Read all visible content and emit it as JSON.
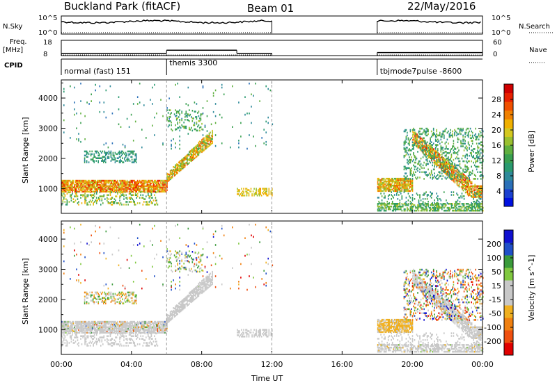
{
  "header": {
    "station": "Buckland Park (fitACF)",
    "beam": "Beam 01",
    "date": "22/May/2016"
  },
  "params": {
    "nsky_label": "N.Sky",
    "nsearch_label": "N.Search",
    "freq_label_1": "Freq.",
    "freq_label_2": "[MHz]",
    "nave_label": "Nave",
    "cpid_label": "CPID",
    "nsky_ticks": [
      "10^5",
      "10^0"
    ],
    "nsearch_ticks": [
      "10^5",
      "10^0"
    ],
    "freq_ticks": [
      "18",
      "8"
    ],
    "nave_ticks": [
      "60",
      "0"
    ],
    "cpid_segments": [
      {
        "label": "normal (fast) 151",
        "start_h": 0,
        "end_h": 6
      },
      {
        "label": "themis 3300",
        "start_h": 6,
        "end_h": 12
      },
      {
        "label": "tbjmode7pulse -8600",
        "start_h": 18,
        "end_h": 24
      }
    ],
    "freq_steps": [
      {
        "start_h": 0,
        "end_h": 6,
        "mhz": 9.5
      },
      {
        "start_h": 6,
        "end_h": 10,
        "mhz": 11.5
      },
      {
        "start_h": 10,
        "end_h": 12,
        "mhz": 9.5
      },
      {
        "start_h": 18,
        "end_h": 24,
        "mhz": 10
      }
    ]
  },
  "chart_data": [
    {
      "type": "heatmap",
      "panel": "power",
      "ylabel": "Slant Range [km]",
      "xlabel": "Time UT",
      "xlim_hours": [
        0,
        24
      ],
      "ylim_km": [
        180,
        4600
      ],
      "x_tick_labels": [
        "00:00",
        "04:00",
        "08:00",
        "12:00",
        "16:00",
        "20:00",
        "00:00"
      ],
      "y_tick_labels": [
        "1000",
        "2000",
        "3000",
        "4000"
      ],
      "colorbar": {
        "label": "Power [dB]",
        "ticks": [
          "4",
          "8",
          "12",
          "16",
          "20",
          "24",
          "28"
        ],
        "range": [
          0,
          30
        ],
        "colors": [
          "#0010e0",
          "#1a40d0",
          "#2a70b8",
          "#2e8a9a",
          "#2a9a70",
          "#3aa050",
          "#60b040",
          "#9ac030",
          "#d4c820",
          "#f0b000",
          "#f08000",
          "#f05000",
          "#e82000",
          "#d00000"
        ]
      },
      "features": [
        {
          "desc": "main band",
          "t": [
            0,
            6
          ],
          "range_km": [
            900,
            1250
          ],
          "power_db": [
            16,
            28
          ]
        },
        {
          "desc": "rising band",
          "t": [
            6,
            8.5
          ],
          "range_km": [
            1200,
            2800
          ],
          "power_db": [
            12,
            26
          ]
        },
        {
          "desc": "late band",
          "t": [
            18,
            24
          ],
          "range_km": [
            300,
            1500
          ],
          "power_db": [
            8,
            28
          ]
        }
      ]
    },
    {
      "type": "heatmap",
      "panel": "velocity",
      "ylabel": "Slant Range [km]",
      "xlabel": "Time UT",
      "xlim_hours": [
        0,
        24
      ],
      "ylim_km": [
        180,
        4600
      ],
      "x_tick_labels": [
        "00:00",
        "04:00",
        "08:00",
        "12:00",
        "16:00",
        "20:00",
        "00:00"
      ],
      "y_tick_labels": [
        "1000",
        "2000",
        "3000",
        "4000"
      ],
      "colorbar": {
        "label": "Velocity [m s^-1]",
        "ticks": [
          "200",
          "100",
          "50",
          "15",
          "-15",
          "-50",
          "-100",
          "-200"
        ],
        "range": [
          -250,
          250
        ],
        "colors": [
          "#1010d0",
          "#2050c8",
          "#3a9a3a",
          "#80c840",
          "#c8c8c8",
          "#c8c8c8",
          "#f0b020",
          "#f08010",
          "#f05010",
          "#e00000"
        ]
      }
    }
  ]
}
